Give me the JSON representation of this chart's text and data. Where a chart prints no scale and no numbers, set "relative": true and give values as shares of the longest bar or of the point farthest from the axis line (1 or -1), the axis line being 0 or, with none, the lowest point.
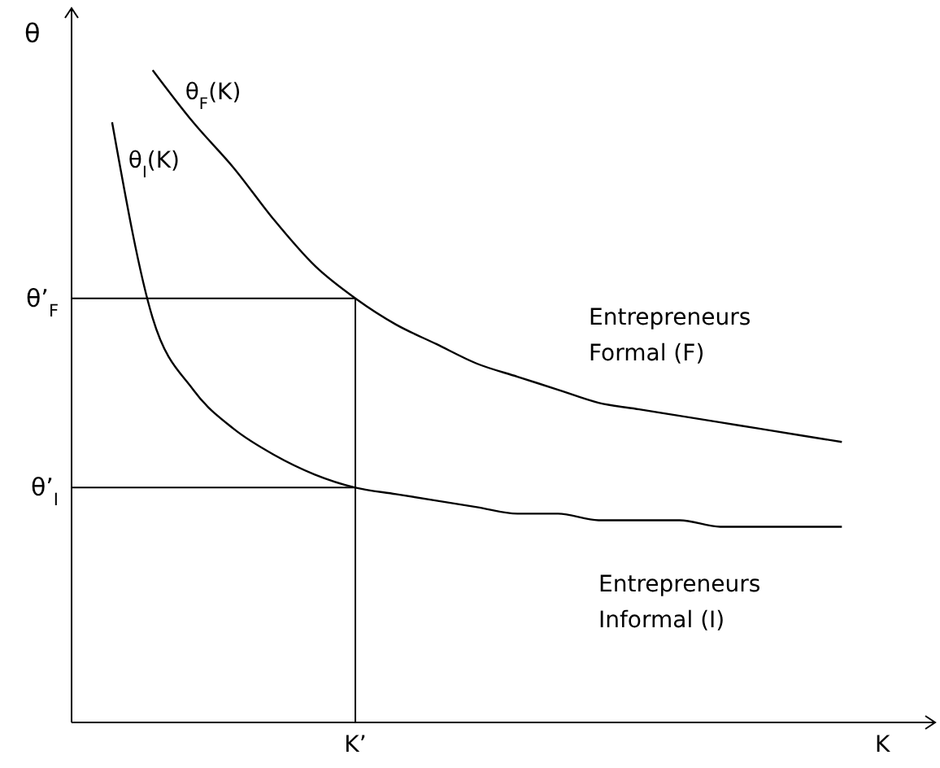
{
  "chart_data": {
    "type": "line",
    "relative": true,
    "ylabel": "θ",
    "categories": [
      null,
      null,
      null,
      null,
      null,
      null,
      null,
      "K’",
      null,
      null,
      null,
      null,
      null,
      null,
      null,
      null,
      null,
      null,
      null,
      null,
      "K"
    ],
    "series": [
      {
        "name": "θ$_{F}$(K)",
        "color": "#000000",
        "values": [
          null,
          null,
          1.0,
          0.92,
          0.85,
          0.77,
          0.7,
          0.65,
          0.61,
          0.58,
          0.55,
          0.53,
          0.51,
          0.49,
          0.48,
          0.47,
          0.46,
          0.45,
          0.44,
          0.43,
          null
        ]
      },
      {
        "name": "θ$_{I}$(K)",
        "color": "#000000",
        "values": [
          null,
          0.92,
          0.62,
          0.51,
          0.45,
          0.41,
          0.38,
          0.36,
          0.35,
          0.34,
          0.33,
          0.32,
          0.32,
          0.31,
          0.31,
          0.31,
          0.3,
          0.3,
          0.3,
          0.3,
          null
        ]
      }
    ],
    "ref_lines": [
      {
        "axis": "y",
        "value": 0.65,
        "label": "θ’$_{F}$"
      },
      {
        "axis": "y",
        "value": 0.36,
        "label": "θ’$_{I}$"
      },
      {
        "axis": "x",
        "value": "K’"
      }
    ],
    "annotations": [
      "Entrepreneurs Formal (F)",
      "Entrepreneurs Informal (I)"
    ]
  }
}
